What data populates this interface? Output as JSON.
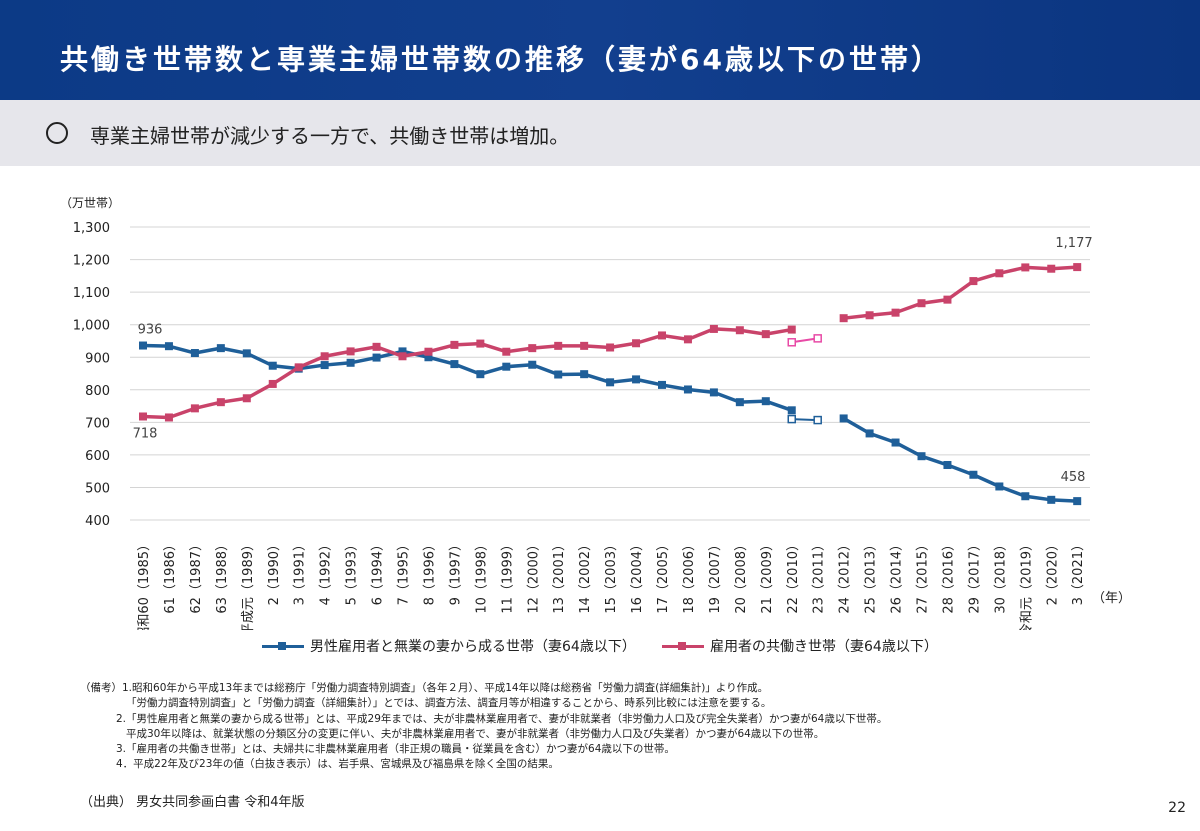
{
  "header": {
    "title": "共働き世帯数と専業主婦世帯数の推移（妻が64歳以下の世帯）"
  },
  "summary": {
    "bullet": "○",
    "text": "専業主婦世帯が減少する一方で、共働き世帯は増加。"
  },
  "colors": {
    "male": "#1f5f99",
    "dual": "#c9436a",
    "dual_break": "#e84aa6",
    "header": "#0c3a86"
  },
  "chart_data": {
    "type": "line",
    "yunit": "（万世帯）",
    "xunit": "（年）",
    "ylim": [
      400,
      1300
    ],
    "yticks": [
      "1,300",
      "1,200",
      "1,100",
      "1,000",
      "900",
      "800",
      "700",
      "600",
      "500",
      "400"
    ],
    "categories": [
      "昭和60（1985）",
      "61（1986）",
      "62（1987）",
      "63（1988）",
      "平成元（1989）",
      "2（1990）",
      "3（1991）",
      "4（1992）",
      "5（1993）",
      "6（1994）",
      "7（1995）",
      "8（1996）",
      "9（1997）",
      "10（1998）",
      "11（1999）",
      "12（2000）",
      "13（2001）",
      "14（2002）",
      "15（2003）",
      "16（2004）",
      "17（2005）",
      "18（2006）",
      "19（2007）",
      "20（2008）",
      "21（2009）",
      "22（2010）",
      "23（2011）",
      "24（2012）",
      "25（2013）",
      "26（2014）",
      "27（2015）",
      "28（2016）",
      "29（2017）",
      "30（2018）",
      "令和元（2019）",
      "2（2020）",
      "3（2021）"
    ],
    "series": [
      {
        "name": "男性雇用者と無業の妻から成る世帯（妻64歳以下）",
        "values": [
          936,
          934,
          913,
          928,
          912,
          874,
          865,
          876,
          883,
          899,
          918,
          900,
          879,
          848,
          871,
          877,
          847,
          848,
          823,
          832,
          815,
          801,
          792,
          762,
          765,
          737,
          null,
          712,
          666,
          638,
          596,
          569,
          539,
          503,
          473,
          462,
          458
        ],
        "break_values": [
          710,
          707
        ]
      },
      {
        "name": "雇用者の共働き世帯（妻64歳以下）",
        "values": [
          718,
          715,
          743,
          762,
          774,
          818,
          869,
          903,
          918,
          932,
          903,
          917,
          938,
          942,
          917,
          928,
          935,
          935,
          930,
          943,
          967,
          955,
          987,
          983,
          971,
          985,
          null,
          1020,
          1029,
          1037,
          1066,
          1077,
          1134,
          1158,
          1176,
          1172,
          1177
        ],
        "break_values": [
          946,
          958
        ]
      }
    ],
    "labels": {
      "male_start": "936",
      "dual_start": "718",
      "dual_end": "1,177",
      "male_end": "458"
    }
  },
  "notes": [
    "（備考）1.昭和60年から平成13年までは総務庁「労働力調査特別調査」（各年２月）、平成14年以降は総務省「労働力調査(詳細集計)」より作成。",
    "「労働力調査特別調査」と「労働力調査（詳細集計）」とでは、調査方法、調査月等が相違することから、時系列比較には注意を要する。",
    "2.「男性雇用者と無業の妻から成る世帯」とは、平成29年までは、夫が非農林業雇用者で、妻が非就業者（非労働力人口及び完全失業者）かつ妻が64歳以下世帯。",
    "平成30年以降は、就業状態の分類区分の変更に伴い、夫が非農林業雇用者で、妻が非就業者（非労働力人口及び失業者）かつ妻が64歳以下の世帯。",
    "3.「雇用者の共働き世帯」とは、夫婦共に非農林業雇用者（非正規の職員・従業員を含む）かつ妻が64歳以下の世帯。",
    "4．平成22年及び23年の値（白抜き表示）は、岩手県、宮城県及び福島県を除く全国の結果。"
  ],
  "source": "（出典）  男女共同参画白書   令和4年版",
  "page_number": "22"
}
